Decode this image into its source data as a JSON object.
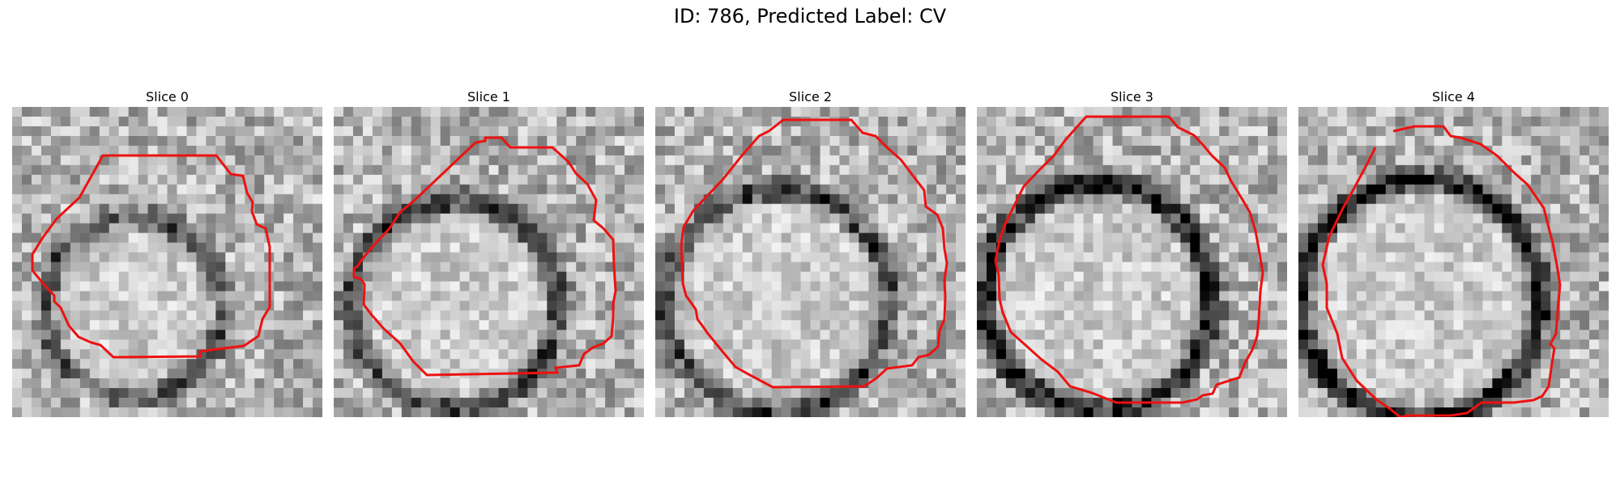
{
  "figure": {
    "title": "ID: 786, Predicted Label: CV"
  },
  "panels": [
    {
      "title": "Slice 0"
    },
    {
      "title": "Slice 1"
    },
    {
      "title": "Slice 2"
    },
    {
      "title": "Slice 3"
    },
    {
      "title": "Slice 4"
    }
  ],
  "colors": {
    "contour": "#ee1111",
    "image_cmap": "gray"
  }
}
